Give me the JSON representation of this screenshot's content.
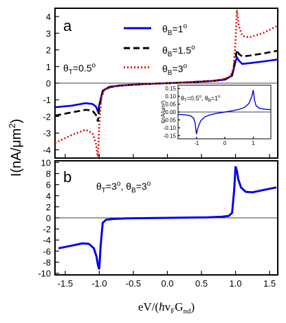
{
  "chart_data": [
    {
      "panel": "a",
      "type": "line",
      "xlim": [
        -1.65,
        1.62
      ],
      "ylim": [
        -4.5,
        4.5
      ],
      "yticks": [
        -4,
        -3,
        -2,
        -1,
        0,
        1,
        2,
        3,
        4
      ],
      "annotation": {
        "main": "θ",
        "sub": "T",
        "rest": "=0.5",
        "sup": "o"
      },
      "legend_placement": "top-center",
      "series": [
        {
          "name": {
            "main": "θ",
            "sub": "B",
            "rest": "=1",
            "sup": "o"
          },
          "color": "#0000ee",
          "style": "solid",
          "x": [
            -1.65,
            -1.4,
            -1.2,
            -1.1,
            -1.05,
            -1.02,
            -1.0,
            -0.95,
            -0.85,
            -0.7,
            -0.5,
            -0.3,
            0,
            0.3,
            0.5,
            0.7,
            0.85,
            0.95,
            1.0,
            1.02,
            1.05,
            1.1,
            1.2,
            1.4,
            1.62
          ],
          "y": [
            -1.45,
            -1.35,
            -1.2,
            -1.25,
            -1.4,
            -1.7,
            -1.3,
            -0.45,
            -0.22,
            -0.14,
            -0.09,
            -0.05,
            0,
            0.05,
            0.09,
            0.14,
            0.22,
            0.45,
            1.3,
            1.55,
            1.35,
            1.15,
            1.2,
            1.3,
            1.42
          ]
        },
        {
          "name": {
            "main": "θ",
            "sub": "B",
            "rest": "=1.5",
            "sup": "o"
          },
          "color": "#000000",
          "style": "dashed",
          "x": [
            -1.65,
            -1.4,
            -1.2,
            -1.1,
            -1.05,
            -1.02,
            -1.0,
            -0.95,
            -0.85,
            -0.7,
            -0.5,
            -0.3,
            0,
            0.3,
            0.5,
            0.7,
            0.85,
            0.95,
            1.0,
            1.02,
            1.05,
            1.1,
            1.2,
            1.4,
            1.62
          ],
          "y": [
            -1.95,
            -1.75,
            -1.6,
            -1.65,
            -1.9,
            -2.3,
            -1.5,
            -0.5,
            -0.24,
            -0.15,
            -0.1,
            -0.05,
            0,
            0.05,
            0.1,
            0.15,
            0.24,
            0.5,
            1.5,
            2.0,
            1.75,
            1.6,
            1.65,
            1.78,
            1.95
          ]
        },
        {
          "name": {
            "main": "θ",
            "sub": "B",
            "rest": "=3",
            "sup": "o"
          },
          "color": "#ee0000",
          "style": "dotted",
          "x": [
            -1.65,
            -1.4,
            -1.2,
            -1.1,
            -1.05,
            -1.02,
            -1.0,
            -0.97,
            -0.93,
            -0.85,
            -0.7,
            -0.5,
            -0.3,
            0,
            0.3,
            0.5,
            0.7,
            0.85,
            0.93,
            0.97,
            1.0,
            1.02,
            1.05,
            1.1,
            1.2,
            1.4,
            1.62
          ],
          "y": [
            -3.6,
            -3.1,
            -2.8,
            -3.0,
            -3.6,
            -4.5,
            -2.5,
            -0.9,
            -0.45,
            -0.27,
            -0.16,
            -0.1,
            -0.05,
            0,
            0.05,
            0.1,
            0.16,
            0.27,
            0.45,
            0.9,
            2.5,
            4.4,
            3.4,
            2.85,
            2.75,
            3.0,
            3.45
          ]
        }
      ],
      "inset": {
        "type": "line",
        "xlim": [
          -1.65,
          1.62
        ],
        "ylim": [
          -0.17,
          0.17
        ],
        "xticks": [
          -1,
          0,
          1
        ],
        "yticks": [
          -0.15,
          -0.1,
          -0.05,
          0.0,
          0.05,
          0.1,
          0.15
        ],
        "ytick_labels": [
          "-0.15",
          "-0.10",
          "-0.05",
          "0.00",
          "0.05",
          "0.10",
          "0.15"
        ],
        "ylabel": "I(nA/μm²)",
        "annotation": "θT=0.5o, θB=1o",
        "annotation_parts": [
          {
            "main": "θ",
            "sub": "T",
            "rest": "=0.5",
            "sup": "o"
          },
          {
            "main": ", θ",
            "sub": "B",
            "rest": "=1",
            "sup": "o"
          }
        ],
        "series": [
          {
            "color": "#0000ee",
            "x": [
              -1.65,
              -1.4,
              -1.2,
              -1.1,
              -1.05,
              -1.02,
              -1.0,
              -0.95,
              -0.85,
              -0.7,
              -0.5,
              -0.3,
              0,
              0.3,
              0.5,
              0.7,
              0.85,
              0.95,
              0.98,
              1.0,
              1.02,
              1.05,
              1.1,
              1.2,
              1.4,
              1.62
            ],
            "y": [
              -0.015,
              -0.018,
              -0.025,
              -0.04,
              -0.07,
              -0.115,
              -0.14,
              -0.1,
              -0.055,
              -0.03,
              -0.017,
              -0.009,
              0,
              0.009,
              0.017,
              0.03,
              0.055,
              0.1,
              0.125,
              0.14,
              0.11,
              0.07,
              0.04,
              0.025,
              0.018,
              0.015
            ]
          }
        ]
      }
    },
    {
      "panel": "b",
      "type": "line",
      "xlim": [
        -1.65,
        1.62
      ],
      "ylim": [
        -10.3,
        10.3
      ],
      "xticks": [
        -1.5,
        -1,
        -0.5,
        0,
        0.5,
        1,
        1.5
      ],
      "xtick_labels": [
        "-1.5",
        "-1.0",
        "-0.5",
        "0.0",
        "0.5",
        "1.0",
        "1.5"
      ],
      "yticks": [
        -10,
        -8,
        -6,
        -4,
        -2,
        0,
        2,
        4,
        6,
        8,
        10
      ],
      "annotation": "θT=3o, θB=3o",
      "annotation_parts": [
        {
          "main": "θ",
          "sub": "T",
          "rest": "=3",
          "sup": "o"
        },
        {
          "main": ", θ",
          "sub": "B",
          "rest": "=3",
          "sup": "o"
        }
      ],
      "series": [
        {
          "color": "#0000ee",
          "x": [
            -1.6,
            -1.4,
            -1.25,
            -1.15,
            -1.08,
            -1.04,
            -1.02,
            -1.0,
            -0.98,
            -0.95,
            -0.9,
            -0.8,
            -0.6,
            -0.3,
            0,
            0.3,
            0.6,
            0.8,
            0.9,
            0.95,
            0.98,
            1.0,
            1.02,
            1.04,
            1.08,
            1.15,
            1.25,
            1.4,
            1.6
          ],
          "y": [
            -5.5,
            -5.0,
            -4.6,
            -4.7,
            -5.5,
            -7.0,
            -8.5,
            -9.3,
            -5.0,
            -0.9,
            -0.35,
            -0.2,
            -0.1,
            -0.05,
            0,
            0.05,
            0.1,
            0.2,
            0.35,
            0.9,
            5.0,
            9.3,
            8.5,
            7.0,
            5.5,
            4.7,
            4.6,
            5.0,
            5.5
          ]
        }
      ]
    }
  ],
  "shared": {
    "ylabel": "I(nA/μm²)",
    "ylabel_main": "I(nA/μm",
    "ylabel_sup": "2",
    "ylabel_end": ")",
    "xlabel": "eV/(ħvFGnd)",
    "xlabel_pre": "eV/(",
    "xlabel_hbar": "ħ",
    "xlabel_v": "v",
    "xlabel_sub1": "F",
    "xlabel_g": "G",
    "xlabel_sub2": "nd",
    "xlabel_end": ")"
  }
}
